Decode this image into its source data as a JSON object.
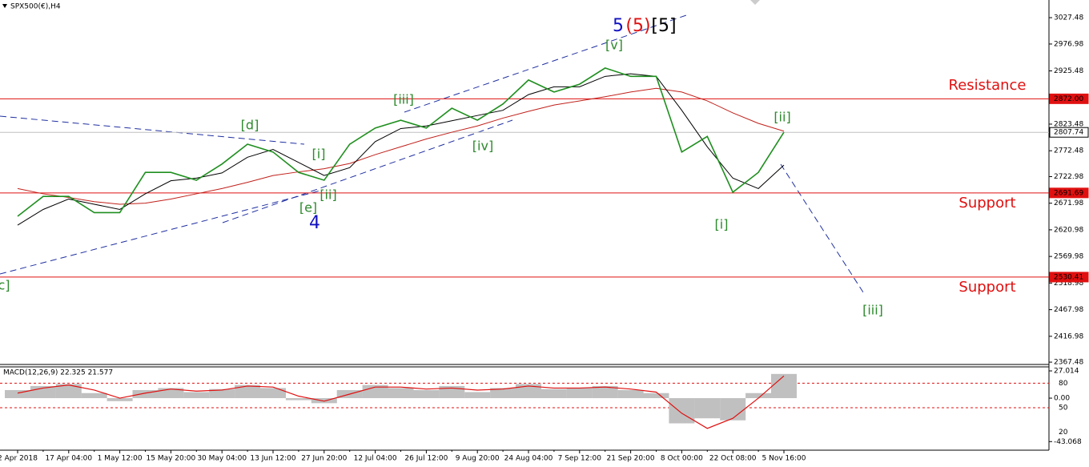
{
  "chart_data": {
    "type": "line",
    "title": "SPX500(€),H4",
    "categories": [
      "2 Apr 2018",
      null,
      "17 Apr 04:00",
      null,
      "1 May 12:00",
      null,
      "15 May 20:00",
      null,
      "30 May 04:00",
      null,
      "13 Jun 12:00",
      null,
      "27 Jun 20:00",
      null,
      "12 Jul 04:00",
      null,
      "26 Jul 12:00",
      null,
      "9 Aug 20:00",
      null,
      "24 Aug 04:00",
      null,
      "7 Sep 12:00",
      null,
      "21 Sep 20:00",
      null,
      "8 Oct 00:00",
      null,
      "22 Oct 08:00",
      null,
      "5 Nov 16:00"
    ],
    "series": [
      {
        "color": "#1f8f1f",
        "values": [
          2647,
          2685,
          2685,
          2654,
          2654,
          2731,
          2731,
          2716,
          2747,
          2785,
          2770,
          2731,
          2716,
          2785,
          2816,
          2831,
          2816,
          2854,
          2831,
          2862,
          2908,
          2885,
          2900,
          2931,
          2915,
          2915,
          2770,
          2800,
          2693,
          2731,
          2808
        ]
      },
      {
        "color": "#000000",
        "values": [
          2630,
          2660,
          2680,
          2670,
          2660,
          2690,
          2715,
          2720,
          2730,
          2760,
          2775,
          2750,
          2725,
          2740,
          2790,
          2815,
          2820,
          2830,
          2840,
          2850,
          2880,
          2895,
          2895,
          2915,
          2920,
          2915,
          2850,
          2780,
          2720,
          2700,
          2745
        ]
      },
      {
        "color": "#c0201a",
        "values": [
          2700,
          2690,
          2683,
          2675,
          2670,
          2672,
          2680,
          2690,
          2700,
          2712,
          2725,
          2732,
          2738,
          2748,
          2765,
          2780,
          2795,
          2808,
          2820,
          2835,
          2848,
          2860,
          2868,
          2876,
          2885,
          2892,
          2885,
          2868,
          2845,
          2825,
          2810
        ]
      }
    ],
    "ylim": [
      2363,
      3061.3
    ],
    "yticks": [
      3027.48,
      2976.98,
      2925.48,
      2823.48,
      2772.48,
      2722.98,
      2671.98,
      2620.98,
      2569.98,
      2518.98,
      2467.98,
      2416.98,
      2367.48
    ],
    "levels": [
      {
        "value": 2872,
        "label": "2872.00",
        "color": "#e01010"
      },
      {
        "value": 2807.74,
        "label": "2807.74",
        "color": "#c0c0c0"
      },
      {
        "value": 2691.69,
        "label": "2691.69",
        "color": "#e01010"
      },
      {
        "value": 2530.41,
        "label": "2530.41",
        "color": "#e01010"
      }
    ],
    "zones": [
      "Resistance",
      "Support",
      "Support"
    ],
    "annotations": [
      {
        "text": "c]",
        "color": "#2d8a2d"
      },
      {
        "text": "[d]",
        "color": "#2d8a2d"
      },
      {
        "text": "[i]",
        "color": "#2d8a2d"
      },
      {
        "text": "[ii]",
        "color": "#2d8a2d"
      },
      {
        "text": "[e]",
        "color": "#2d8a2d"
      },
      {
        "text": "4",
        "color": "#1010c0"
      },
      {
        "text": "[iii]",
        "color": "#2d8a2d"
      },
      {
        "text": "[iv]",
        "color": "#2d8a2d"
      },
      {
        "text": "[v]",
        "color": "#2d8a2d"
      },
      {
        "text": "5",
        "color": "#1010c0"
      },
      {
        "text": "(5)",
        "color": "#e01010"
      },
      {
        "text": "[5]",
        "color": "#000000"
      },
      {
        "text": "[ii]",
        "color": "#2d8a2d"
      },
      {
        "text": "[i]",
        "color": "#2d8a2d"
      },
      {
        "text": "[iii]",
        "color": "#2d8a2d"
      }
    ],
    "macd": {
      "title": "MACD(12,26,9) 22.325 21.577",
      "ylim": [
        -50,
        31
      ],
      "yticks": [
        27.014,
        {
          "value": 0,
          "label": "0.00"
        },
        -43.068
      ],
      "y2lim": [
        0,
        100
      ],
      "y2ticks": [
        80,
        50,
        20
      ],
      "histogram": {
        "color": "#c0c0c0",
        "values": [
          8,
          12,
          14,
          5,
          -3,
          8,
          10,
          6,
          9,
          13,
          10,
          -2,
          -5,
          8,
          13,
          10,
          8,
          12,
          6,
          10,
          14,
          9,
          10,
          12,
          8,
          5,
          -25,
          -20,
          -22,
          5,
          24
        ]
      },
      "signal": {
        "color": "#e01010",
        "values": [
          5,
          10,
          13,
          8,
          0,
          5,
          9,
          7,
          8,
          12,
          11,
          2,
          -3,
          4,
          11,
          11,
          9,
          10,
          8,
          9,
          12,
          10,
          10,
          11,
          9,
          6,
          -15,
          -30,
          -20,
          0,
          22
        ]
      }
    }
  }
}
